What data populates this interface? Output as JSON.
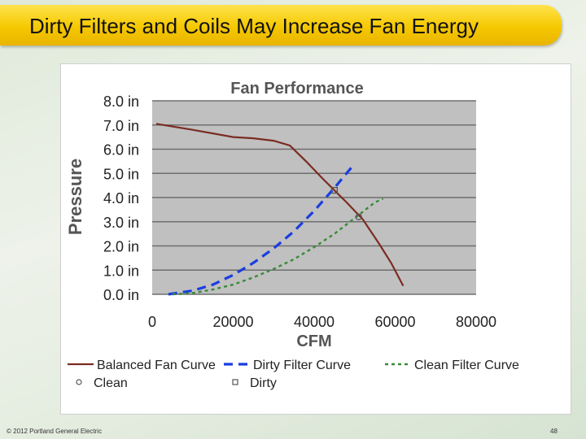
{
  "slide": {
    "title": "Dirty Filters and Coils May Increase Fan Energy",
    "footer_left": "© 2012 Portland General Electric",
    "page_number": "48"
  },
  "chart_data": {
    "type": "line",
    "title": "Fan Performance",
    "xlabel": "CFM",
    "ylabel": "Pressure",
    "xlim": [
      0,
      80000
    ],
    "ylim": [
      0,
      8
    ],
    "x_ticks": [
      0,
      20000,
      40000,
      60000,
      80000
    ],
    "x_tick_labels": [
      "0",
      "20000",
      "40000",
      "60000",
      "80000"
    ],
    "y_ticks": [
      0,
      1,
      2,
      3,
      4,
      5,
      6,
      7,
      8
    ],
    "y_tick_labels": [
      "0.0 in",
      "1.0 in",
      "2.0 in",
      "3.0 in",
      "4.0 in",
      "5.0 in",
      "6.0 in",
      "7.0 in",
      "8.0 in"
    ],
    "grid": true,
    "background": "#c0c0c0",
    "legend_position": "bottom",
    "series": [
      {
        "name": "Balanced Fan Curve",
        "style": "solid",
        "color": "#7b2c22",
        "x": [
          1000,
          10000,
          20000,
          25000,
          30000,
          34000,
          38000,
          42000,
          45000,
          48000,
          52000,
          56000,
          59000,
          62000
        ],
        "y": [
          7.05,
          6.8,
          6.5,
          6.45,
          6.35,
          6.15,
          5.5,
          4.8,
          4.3,
          3.8,
          3.1,
          2.1,
          1.3,
          0.35
        ]
      },
      {
        "name": "Dirty Filter Curve",
        "style": "dashed",
        "color": "#1a3ee0",
        "x": [
          4000,
          10000,
          15000,
          20000,
          25000,
          30000,
          35000,
          40000,
          45000,
          50000
        ],
        "y": [
          0.0,
          0.15,
          0.4,
          0.8,
          1.3,
          1.9,
          2.6,
          3.45,
          4.4,
          5.4
        ]
      },
      {
        "name": "Clean Filter Curve",
        "style": "dotted",
        "color": "#3a8a3a",
        "x": [
          5000,
          10000,
          15000,
          20000,
          25000,
          30000,
          35000,
          40000,
          45000,
          50000,
          55000,
          57000
        ],
        "y": [
          0.0,
          0.05,
          0.2,
          0.4,
          0.7,
          1.05,
          1.45,
          1.95,
          2.5,
          3.15,
          3.8,
          3.95
        ]
      }
    ],
    "markers": [
      {
        "name": "Clean",
        "shape": "circle",
        "x": 51000,
        "y": 3.2
      },
      {
        "name": "Dirty",
        "shape": "square",
        "x": 45000,
        "y": 4.3
      }
    ],
    "legend": [
      "Balanced Fan Curve",
      "Dirty Filter Curve",
      "Clean Filter Curve",
      "Clean",
      "Dirty"
    ]
  }
}
